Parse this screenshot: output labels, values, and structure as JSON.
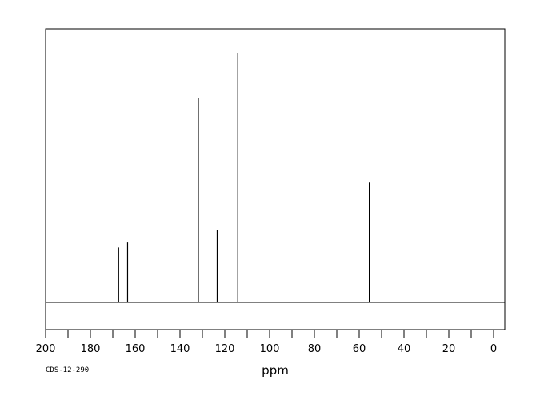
{
  "chart_data": {
    "type": "line",
    "title": "",
    "xlabel": "ppm",
    "ylabel": "",
    "xlim": [
      200,
      -5
    ],
    "x_reversed": true,
    "ylim": [
      -0.12,
      1.1
    ],
    "grid": false,
    "x_ticks": [
      200,
      180,
      160,
      140,
      120,
      100,
      80,
      60,
      40,
      20,
      0
    ],
    "x_minor_step": 10,
    "series": [
      {
        "name": "",
        "peaks": [
          {
            "ppm": 167.4,
            "intensity": 0.22
          },
          {
            "ppm": 163.4,
            "intensity": 0.24
          },
          {
            "ppm": 131.8,
            "intensity": 0.82
          },
          {
            "ppm": 123.4,
            "intensity": 0.29
          },
          {
            "ppm": 114.2,
            "intensity": 1.0
          },
          {
            "ppm": 55.5,
            "intensity": 0.48
          }
        ]
      }
    ]
  },
  "footer": {
    "code": "CDS-12-290"
  },
  "colors": {
    "line": "#000000",
    "background": "#ffffff"
  }
}
